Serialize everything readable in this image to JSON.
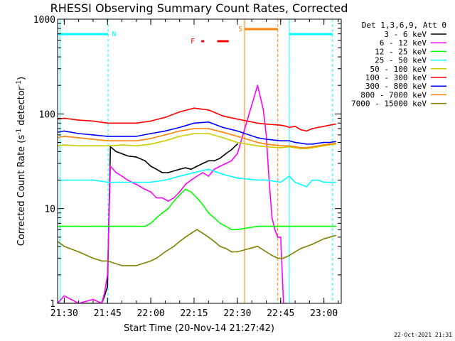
{
  "chart_data": {
    "type": "line",
    "title": "RHESSI Observing Summary Count Rates, Corrected",
    "xlabel": "Start Time (20-Nov-14 21:27:42)",
    "ylabel_main": "Corrected Count Rate (s",
    "ylabel_sup1": "-1",
    "ylabel_mid": " detector",
    "ylabel_sup2": "-1",
    "ylabel_end": ")",
    "x_range_min": [
      1287.7,
      1386
    ],
    "y_range": [
      1,
      1000
    ],
    "y_scale": "log",
    "x_ticks": [
      {
        "min": 1290,
        "label": "21:30"
      },
      {
        "min": 1305,
        "label": "21:45"
      },
      {
        "min": 1320,
        "label": "22:00"
      },
      {
        "min": 1335,
        "label": "22:15"
      },
      {
        "min": 1350,
        "label": "22:30"
      },
      {
        "min": 1365,
        "label": "22:45"
      },
      {
        "min": 1380,
        "label": "23:00"
      }
    ],
    "y_ticks": [
      {
        "value": 1,
        "label": "1"
      },
      {
        "value": 10,
        "label": "10"
      },
      {
        "value": 100,
        "label": "100"
      },
      {
        "value": 1000,
        "label": "1000"
      }
    ],
    "legend_header": "Det 1,3,6,9, Att 0",
    "legend_position": "right",
    "series": [
      {
        "name": "3 - 6 keV",
        "color": "#000000",
        "x": [
          1287.7,
          1290,
          1295,
          1300,
          1303,
          1304,
          1305,
          1306,
          1308,
          1310,
          1312,
          1315,
          1318,
          1320,
          1322,
          1324,
          1326,
          1328,
          1330,
          1332,
          1334,
          1336,
          1338,
          1340,
          1342,
          1344,
          1346,
          1348,
          1349,
          1350
        ],
        "y": [
          1,
          1,
          1,
          1,
          1,
          1.2,
          1.5,
          45,
          40,
          38,
          36,
          35,
          32,
          28,
          26,
          24,
          24,
          25,
          26,
          27,
          26,
          28,
          30,
          32,
          32,
          34,
          38,
          42,
          45,
          48
        ]
      },
      {
        "name": "6 - 12 keV",
        "color": "#ff00ff",
        "x": [
          1287.7,
          1290,
          1295,
          1300,
          1303,
          1304,
          1305,
          1306,
          1308,
          1310,
          1312,
          1315,
          1318,
          1320,
          1322,
          1324,
          1326,
          1328,
          1330,
          1332,
          1334,
          1336,
          1338,
          1340,
          1342,
          1344,
          1346,
          1348,
          1349,
          1350,
          1357,
          1358,
          1359,
          1360,
          1361,
          1362,
          1363,
          1364,
          1365,
          1366,
          1367
        ],
        "y": [
          1,
          1.2,
          1,
          1.1,
          1,
          1.3,
          2,
          28,
          24,
          22,
          20,
          18,
          16,
          15,
          13,
          13,
          12,
          13,
          15,
          18,
          20,
          22,
          24,
          22,
          26,
          28,
          30,
          32,
          35,
          38,
          200,
          150,
          110,
          60,
          20,
          8,
          6,
          5,
          5,
          1,
          1
        ]
      },
      {
        "name": "12 - 25 keV",
        "color": "#00ff00",
        "x": [
          1287.7,
          1290,
          1295,
          1300,
          1303,
          1304,
          1305,
          1306,
          1308,
          1310,
          1312,
          1315,
          1318,
          1320,
          1322,
          1324,
          1326,
          1328,
          1330,
          1332,
          1334,
          1336,
          1338,
          1340,
          1342,
          1344,
          1346,
          1348,
          1349,
          1350,
          1357,
          1358,
          1360,
          1362,
          1363,
          1364,
          1365,
          1366,
          1368,
          1370,
          1372,
          1374,
          1376,
          1378,
          1380,
          1382,
          1384
        ],
        "y": [
          6.5,
          6.5,
          6.5,
          6.5,
          6.5,
          6.5,
          6.5,
          6.5,
          6.5,
          6.5,
          6.5,
          6.5,
          6.5,
          7,
          8,
          9,
          10,
          12,
          14,
          16,
          15,
          13,
          11,
          9,
          8,
          7,
          6.5,
          6,
          6,
          6,
          6.5,
          6.5,
          6.5,
          6.5,
          6.5,
          6.5,
          6.5,
          6.5,
          6.5,
          6.5,
          6.5,
          6.5,
          6.5,
          6.5,
          6.5,
          6.5,
          6.5
        ]
      },
      {
        "name": "25 - 50 keV",
        "color": "#00ffff",
        "x": [
          1287.7,
          1290,
          1295,
          1300,
          1305,
          1310,
          1315,
          1320,
          1325,
          1330,
          1335,
          1340,
          1345,
          1350,
          1357,
          1360,
          1365,
          1368,
          1370,
          1372,
          1374,
          1376,
          1378,
          1380,
          1382,
          1384
        ],
        "y": [
          20,
          20,
          20,
          20,
          19,
          19,
          19,
          19,
          20,
          22,
          24,
          26,
          23,
          21,
          20,
          20,
          19,
          22,
          19,
          18,
          17,
          20,
          20,
          19,
          19,
          19
        ]
      },
      {
        "name": "50 - 100 keV",
        "color": "#cccc00",
        "x": [
          1287.7,
          1290,
          1295,
          1300,
          1305,
          1310,
          1315,
          1320,
          1325,
          1330,
          1335,
          1340,
          1345,
          1350,
          1357,
          1360,
          1365,
          1368,
          1370,
          1372,
          1374,
          1376,
          1378,
          1380,
          1382,
          1384
        ],
        "y": [
          46,
          47,
          46,
          46,
          46,
          47,
          46,
          48,
          52,
          58,
          62,
          62,
          56,
          50,
          46,
          45,
          44,
          45,
          44,
          43,
          43,
          44,
          45,
          46,
          47,
          48
        ]
      },
      {
        "name": "100 - 300 keV",
        "color": "#ff0000",
        "x": [
          1287.7,
          1290,
          1295,
          1300,
          1305,
          1310,
          1315,
          1320,
          1325,
          1330,
          1335,
          1340,
          1345,
          1350,
          1357,
          1360,
          1365,
          1367,
          1368,
          1370,
          1372,
          1374,
          1376,
          1378,
          1380,
          1382,
          1384
        ],
        "y": [
          88,
          90,
          86,
          84,
          80,
          80,
          80,
          84,
          92,
          105,
          115,
          110,
          95,
          88,
          80,
          78,
          76,
          74,
          72,
          74,
          68,
          66,
          70,
          72,
          74,
          76,
          78
        ]
      },
      {
        "name": "300 - 800 keV",
        "color": "#0000ff",
        "x": [
          1287.7,
          1290,
          1295,
          1300,
          1305,
          1310,
          1315,
          1320,
          1325,
          1330,
          1335,
          1340,
          1345,
          1350,
          1357,
          1360,
          1365,
          1368,
          1370,
          1372,
          1374,
          1376,
          1378,
          1380,
          1382,
          1384
        ],
        "y": [
          64,
          66,
          62,
          60,
          58,
          58,
          58,
          62,
          66,
          72,
          80,
          82,
          72,
          66,
          56,
          54,
          52,
          52,
          50,
          49,
          48,
          48,
          49,
          50,
          50,
          51
        ]
      },
      {
        "name": "800 - 7000 keV",
        "color": "#ff8000",
        "x": [
          1287.7,
          1290,
          1295,
          1300,
          1305,
          1310,
          1315,
          1320,
          1325,
          1330,
          1335,
          1340,
          1345,
          1350,
          1357,
          1360,
          1365,
          1368,
          1370,
          1372,
          1374,
          1376,
          1378,
          1380,
          1382,
          1384
        ],
        "y": [
          56,
          58,
          56,
          54,
          52,
          52,
          52,
          55,
          60,
          66,
          70,
          70,
          64,
          58,
          50,
          48,
          46,
          46,
          45,
          44,
          44,
          45,
          46,
          47,
          48,
          49
        ]
      },
      {
        "name": "7000 - 15000 keV",
        "color": "#808000",
        "x": [
          1287.7,
          1290,
          1295,
          1300,
          1303,
          1305,
          1310,
          1315,
          1320,
          1322,
          1325,
          1328,
          1330,
          1332,
          1334,
          1336,
          1338,
          1340,
          1342,
          1344,
          1346,
          1348,
          1350,
          1357,
          1360,
          1362,
          1364,
          1366,
          1368,
          1370,
          1372,
          1374,
          1376,
          1378,
          1380,
          1382,
          1384
        ],
        "y": [
          4.5,
          4,
          3.5,
          3,
          2.8,
          2.8,
          2.5,
          2.5,
          2.8,
          3,
          3.5,
          4,
          4.5,
          5,
          5.5,
          6,
          5.5,
          5,
          4.5,
          4,
          3.8,
          3.5,
          3.5,
          4,
          3.5,
          3.2,
          3,
          3,
          3.2,
          3.5,
          3.8,
          4,
          4.2,
          4.5,
          4.8,
          5,
          5.2
        ]
      }
    ],
    "annotations": {
      "night_label": "N",
      "flare_label": "F",
      "saa_label": "S"
    }
  },
  "footer_date": "22-Oct-2021 21:31",
  "colors": {
    "night": "#00ffff",
    "saa": "#ff8000",
    "flare": "#ff0000"
  }
}
